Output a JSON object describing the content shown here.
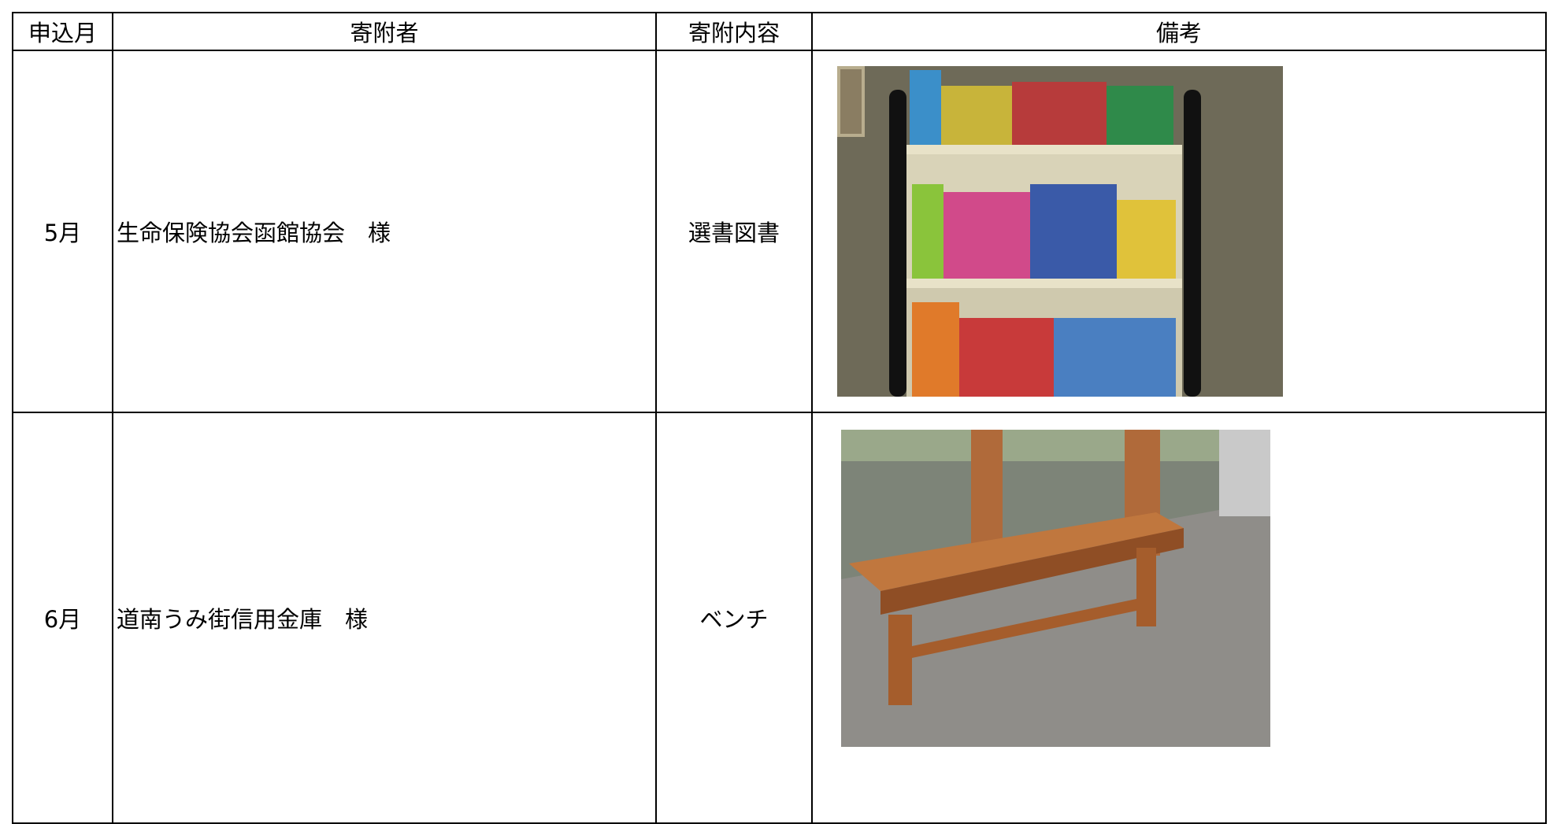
{
  "table": {
    "header": [
      "申込月",
      "寄附者",
      "寄附内容",
      "備考"
    ],
    "rows": [
      [
        "5月",
        "生命保険協会函館協会　様",
        "選書図書"
      ],
      [
        "6月",
        "道南うみ街信用金庫　様",
        "ベンチ"
      ]
    ]
  }
}
